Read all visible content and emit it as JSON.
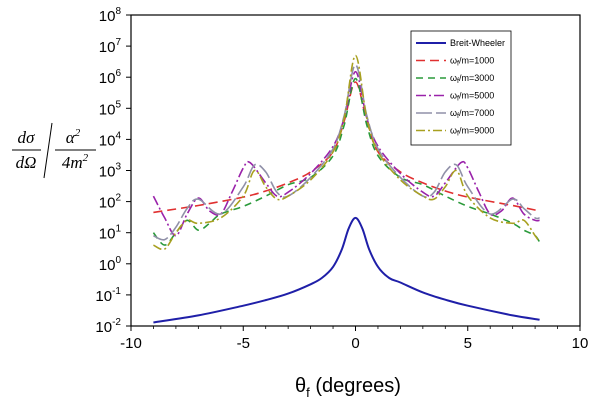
{
  "chart_data": {
    "type": "line",
    "title": "",
    "xlabel_main": "θ",
    "xlabel_sub": "f",
    "xlabel_rest": " (degrees)",
    "ylabel": {
      "num_left": "dσ",
      "den_left": "dΩ",
      "num_right": "α",
      "num_right_sup": "2",
      "den_right": "4m",
      "den_right_sup": "2"
    },
    "xlim": [
      -10,
      10
    ],
    "xticks": [
      "-10",
      "-5",
      "0",
      "5",
      "10"
    ],
    "ylim_log10": [
      -2,
      8
    ],
    "ytick_base": "10",
    "ytick_exponents": [
      "-2",
      "-1",
      "0",
      "1",
      "2",
      "3",
      "4",
      "5",
      "6",
      "7",
      "8"
    ],
    "grid": false,
    "legend_position": "top-right",
    "series": [
      {
        "name": "Breit-Wheeler",
        "color": "#1f1fa8",
        "dash": "",
        "x": [
          -9,
          -7,
          -5,
          -4,
          -3,
          -2,
          -1.5,
          -1,
          -0.6,
          -0.3,
          0,
          0.3,
          0.6,
          1,
          1.5,
          2,
          3,
          4,
          5,
          7,
          8.2
        ],
        "y": [
          0.013,
          0.022,
          0.045,
          0.068,
          0.11,
          0.22,
          0.35,
          0.8,
          3,
          14,
          30,
          14,
          3,
          0.8,
          0.35,
          0.25,
          0.12,
          0.07,
          0.045,
          0.022,
          0.016
        ]
      },
      {
        "name": "ω_f/m=1000",
        "color": "#e03030",
        "dash": "9,5",
        "x": [
          -9,
          -7,
          -5,
          -4,
          -3,
          -2,
          -1,
          -0.5,
          0,
          0.5,
          1,
          2,
          3,
          4,
          5,
          7,
          8.2
        ],
        "y": [
          45,
          75,
          140,
          220,
          400,
          900,
          4000,
          40000,
          700000,
          40000,
          4000,
          900,
          400,
          220,
          140,
          75,
          50
        ]
      },
      {
        "name": "ω_f/m=3000",
        "color": "#2a9a3a",
        "dash": "7,5",
        "x": [
          -9,
          -8.5,
          -8,
          -7.5,
          -7,
          -6.5,
          -6,
          -5,
          -4,
          -3,
          -2,
          -1,
          -0.5,
          0,
          0.5,
          1,
          2,
          3,
          4,
          5,
          6,
          7,
          7.5,
          8,
          8.2
        ],
        "y": [
          10,
          4,
          10,
          25,
          12,
          20,
          40,
          70,
          150,
          350,
          600,
          3000,
          30000,
          900000,
          30000,
          3000,
          600,
          350,
          150,
          70,
          40,
          20,
          12,
          8,
          5
        ]
      },
      {
        "name": "ω_f/m=5000",
        "color": "#9a22aa",
        "dash": "10,3,2,3",
        "x": [
          -9,
          -8.5,
          -8,
          -7.5,
          -7,
          -6.5,
          -6,
          -5.5,
          -5,
          -4.7,
          -4,
          -3.5,
          -3,
          -2,
          -1,
          -0.5,
          0,
          0.5,
          1,
          2,
          3,
          3.5,
          4,
          4.7,
          5,
          5.5,
          6,
          6.5,
          7,
          7.5,
          8,
          8.2
        ],
        "y": [
          150,
          30,
          8,
          40,
          130,
          50,
          40,
          200,
          1200,
          1800,
          400,
          150,
          200,
          800,
          6000,
          50000,
          1500000,
          50000,
          6000,
          800,
          200,
          150,
          400,
          1800,
          1200,
          200,
          40,
          50,
          130,
          40,
          25,
          25
        ]
      },
      {
        "name": "ω_f/m=7000",
        "color": "#9090a8",
        "dash": "16,4",
        "x": [
          -9,
          -8.5,
          -8,
          -7.5,
          -7,
          -6,
          -5,
          -4.5,
          -4,
          -3.5,
          -3,
          -2,
          -1,
          -0.5,
          0,
          0.5,
          1,
          2,
          3,
          3.5,
          4,
          4.5,
          5,
          6,
          7,
          7.5,
          8,
          8.2
        ],
        "y": [
          8,
          6,
          15,
          60,
          120,
          40,
          300,
          1500,
          900,
          200,
          150,
          600,
          5000,
          60000,
          2500000,
          60000,
          5000,
          600,
          150,
          200,
          900,
          1500,
          300,
          40,
          120,
          60,
          30,
          30
        ]
      },
      {
        "name": "ω_f/m=9000",
        "color": "#a8a020",
        "dash": "9,3,2,3",
        "x": [
          -9,
          -8.5,
          -8,
          -7.5,
          -7,
          -6,
          -5,
          -4.5,
          -4,
          -3.5,
          -3,
          -2,
          -1,
          -0.5,
          0,
          0.5,
          1,
          2,
          3,
          3.5,
          4,
          4.5,
          5,
          6,
          7,
          7.5,
          8,
          8.2
        ],
        "y": [
          4,
          3,
          10,
          25,
          20,
          30,
          150,
          1000,
          300,
          120,
          150,
          500,
          4000,
          50000,
          5000000,
          50000,
          4000,
          500,
          150,
          120,
          300,
          1000,
          150,
          30,
          20,
          25,
          8,
          5
        ]
      }
    ],
    "legend": [
      {
        "label": "Breit-Wheeler",
        "main": "Breit-Wheeler",
        "sub": "",
        "rest": ""
      },
      {
        "label": "ω_f/m=1000",
        "main": "ω",
        "sub": "f",
        "rest": "/m=1000"
      },
      {
        "label": "ω_f/m=3000",
        "main": "ω",
        "sub": "f",
        "rest": "/m=3000"
      },
      {
        "label": "ω_f/m=5000",
        "main": "ω",
        "sub": "f",
        "rest": "/m=5000"
      },
      {
        "label": "ω_f/m=7000",
        "main": "ω",
        "sub": "f",
        "rest": "/m=7000"
      },
      {
        "label": "ω_f/m=9000",
        "main": "ω",
        "sub": "f",
        "rest": "/m=9000"
      }
    ]
  }
}
